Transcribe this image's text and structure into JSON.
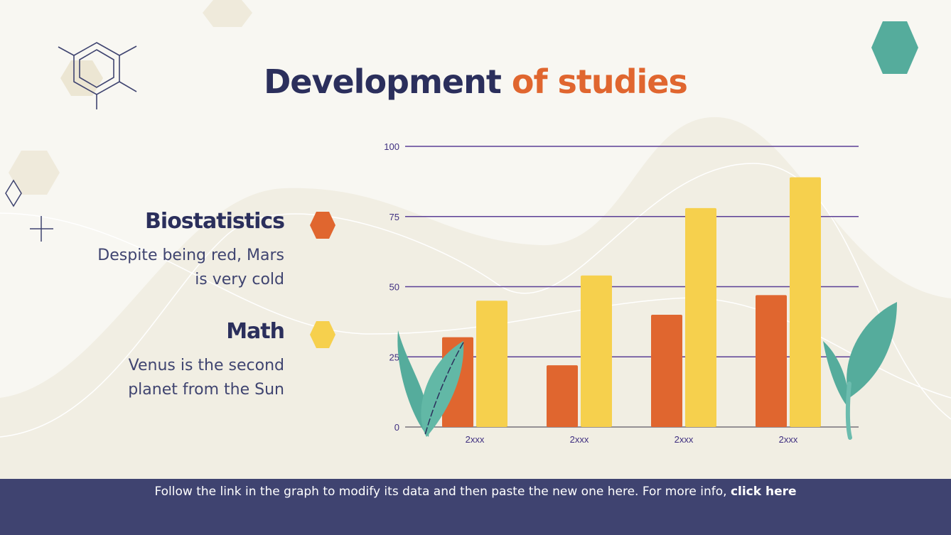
{
  "title": {
    "part1": "Development",
    "part2": "of studies"
  },
  "legend": [
    {
      "name": "Biostatistics",
      "description_line1": "Despite being red, Mars",
      "description_line2": "is very cold",
      "color": "#e0662f",
      "icon": "hexagon-icon"
    },
    {
      "name": "Math",
      "description_line1": "Venus is the second",
      "description_line2": "planet from the Sun",
      "color": "#f6d04d",
      "icon": "hexagon-icon"
    }
  ],
  "footer": {
    "text": "Follow the link in the graph to modify its data and then paste the new one here. For more info, ",
    "link": "click here"
  },
  "colors": {
    "navy": "#2b2f5c",
    "orange": "#e0662f",
    "yellow": "#f6d04d",
    "teal": "#55ac9c",
    "footer_bg": "#3f4370",
    "gridline": "#5b3f96"
  },
  "chart_data": {
    "type": "bar",
    "categories": [
      "2xxx",
      "2xxx",
      "2xxx",
      "2xxx"
    ],
    "series": [
      {
        "name": "Biostatistics",
        "color": "#e0662f",
        "values": [
          32,
          22,
          40,
          47
        ]
      },
      {
        "name": "Math",
        "color": "#f6d04d",
        "values": [
          45,
          54,
          78,
          89
        ]
      }
    ],
    "yticks": [
      "0",
      "25",
      "50",
      "75",
      "100"
    ],
    "ylim": [
      0,
      100
    ],
    "grid": true,
    "legend": "left"
  }
}
